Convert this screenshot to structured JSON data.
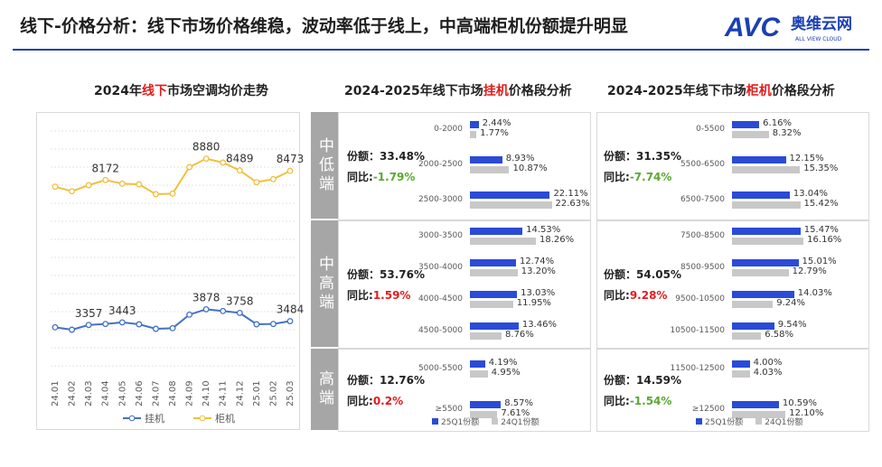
{
  "header": {
    "title": "线下-价格分析：线下市场价格维稳，波动率低于线上，中高端柜机份额提升明显",
    "logo_text": "AVC",
    "logo_cn": "奥维云网",
    "logo_en": "ALL VIEW CLOUD",
    "brand_color": "#1a3fb5"
  },
  "line_section": {
    "title_pre": "2024年",
    "title_red": "线下",
    "title_post": "市场空调均价走势"
  },
  "gj_section": {
    "title_pre": "2024-2025年线下市场",
    "title_red": "挂机",
    "title_post": "价格段分析"
  },
  "gui_section": {
    "title_pre": "2024-2025年线下市场",
    "title_red": "柜机",
    "title_post": "价格段分析"
  },
  "labels": {
    "share": "份额：",
    "yoy": "同比:",
    "legend_25": "25Q1份额",
    "legend_24": "24Q1份额"
  },
  "chart_data": [
    {
      "type": "line",
      "x": [
        "24.01",
        "24.02",
        "24.03",
        "24.04",
        "24.05",
        "24.06",
        "24.07",
        "24.08",
        "24.09",
        "24.10",
        "24.11",
        "24.12",
        "25.01",
        "25.02",
        "25.03"
      ],
      "series": [
        {
          "name": "挂机",
          "color": "#4472c4",
          "values": [
            3280,
            3200,
            3357,
            3390,
            3443,
            3380,
            3230,
            3250,
            3700,
            3878,
            3820,
            3758,
            3380,
            3390,
            3484
          ],
          "labels": {
            "2": "3357",
            "4": "3443",
            "9": "3878",
            "11": "3758",
            "14": "3484"
          }
        },
        {
          "name": "柜机",
          "color": "#f0c040",
          "values": [
            7950,
            7800,
            8000,
            8172,
            8050,
            8030,
            7700,
            7720,
            8600,
            8880,
            8750,
            8489,
            8100,
            8200,
            8473
          ],
          "labels": {
            "3": "8172",
            "9": "8880",
            "11": "8489",
            "14": "8473"
          }
        }
      ],
      "ylim": [
        2000,
        9800
      ]
    },
    {
      "type": "bar",
      "name": "挂机价格段",
      "groups": [
        {
          "seg": "中低端",
          "share": "33.48%",
          "yoy": "-1.79%",
          "yoy_sign": "neg",
          "rows": [
            {
              "cat": "0-2000",
              "v25": 2.44,
              "v24": 1.77,
              "l25": "2.44%",
              "l24": "1.77%"
            },
            {
              "cat": "2000-2500",
              "v25": 8.93,
              "v24": 10.87,
              "l25": "8.93%",
              "l24": "10.87%"
            },
            {
              "cat": "2500-3000",
              "v25": 22.11,
              "v24": 22.63,
              "l25": "22.11%",
              "l24": "22.63%"
            }
          ]
        },
        {
          "seg": "中高端",
          "share": "53.76%",
          "yoy": "1.59%",
          "yoy_sign": "pos",
          "rows": [
            {
              "cat": "3000-3500",
              "v25": 14.53,
              "v24": 18.26,
              "l25": "14.53%",
              "l24": "18.26%"
            },
            {
              "cat": "3500-4000",
              "v25": 12.74,
              "v24": 13.2,
              "l25": "12.74%",
              "l24": "13.20%"
            },
            {
              "cat": "4000-4500",
              "v25": 13.03,
              "v24": 11.95,
              "l25": "13.03%",
              "l24": "11.95%"
            },
            {
              "cat": "4500-5000",
              "v25": 13.46,
              "v24": 8.76,
              "l25": "13.46%",
              "l24": "8.76%"
            }
          ]
        },
        {
          "seg": "高端",
          "share": "12.76%",
          "yoy": "0.2%",
          "yoy_sign": "pos",
          "rows": [
            {
              "cat": "5000-5500",
              "v25": 4.19,
              "v24": 4.95,
              "l25": "4.19%",
              "l24": "4.95%"
            },
            {
              "cat": "≥5500",
              "v25": 8.57,
              "v24": 7.61,
              "l25": "8.57%",
              "l24": "7.61%"
            }
          ]
        }
      ]
    },
    {
      "type": "bar",
      "name": "柜机价格段",
      "groups": [
        {
          "seg": "中低端",
          "share": "31.35%",
          "yoy": "-7.74%",
          "yoy_sign": "neg",
          "rows": [
            {
              "cat": "0-5500",
              "v25": 6.16,
              "v24": 8.32,
              "l25": "6.16%",
              "l24": "8.32%"
            },
            {
              "cat": "5500-6500",
              "v25": 12.15,
              "v24": 15.35,
              "l25": "12.15%",
              "l24": "15.35%"
            },
            {
              "cat": "6500-7500",
              "v25": 13.04,
              "v24": 15.42,
              "l25": "13.04%",
              "l24": "15.42%"
            }
          ]
        },
        {
          "seg": "中高端",
          "share": "54.05%",
          "yoy": "9.28%",
          "yoy_sign": "pos",
          "rows": [
            {
              "cat": "7500-8500",
              "v25": 15.47,
              "v24": 16.16,
              "l25": "15.47%",
              "l24": "16.16%"
            },
            {
              "cat": "8500-9500",
              "v25": 15.01,
              "v24": 12.79,
              "l25": "15.01%",
              "l24": "12.79%"
            },
            {
              "cat": "9500-10500",
              "v25": 14.03,
              "v24": 9.24,
              "l25": "14.03%",
              "l24": "9.24%"
            },
            {
              "cat": "10500-11500",
              "v25": 9.54,
              "v24": 6.58,
              "l25": "9.54%",
              "l24": "6.58%"
            }
          ]
        },
        {
          "seg": "高端",
          "share": "14.59%",
          "yoy": "-1.54%",
          "yoy_sign": "neg",
          "rows": [
            {
              "cat": "11500-12500",
              "v25": 4.0,
              "v24": 4.03,
              "l25": "4.00%",
              "l24": "4.03%"
            },
            {
              "cat": "≥12500",
              "v25": 10.59,
              "v24": 12.1,
              "l25": "10.59%",
              "l24": "12.10%"
            }
          ]
        }
      ]
    }
  ]
}
